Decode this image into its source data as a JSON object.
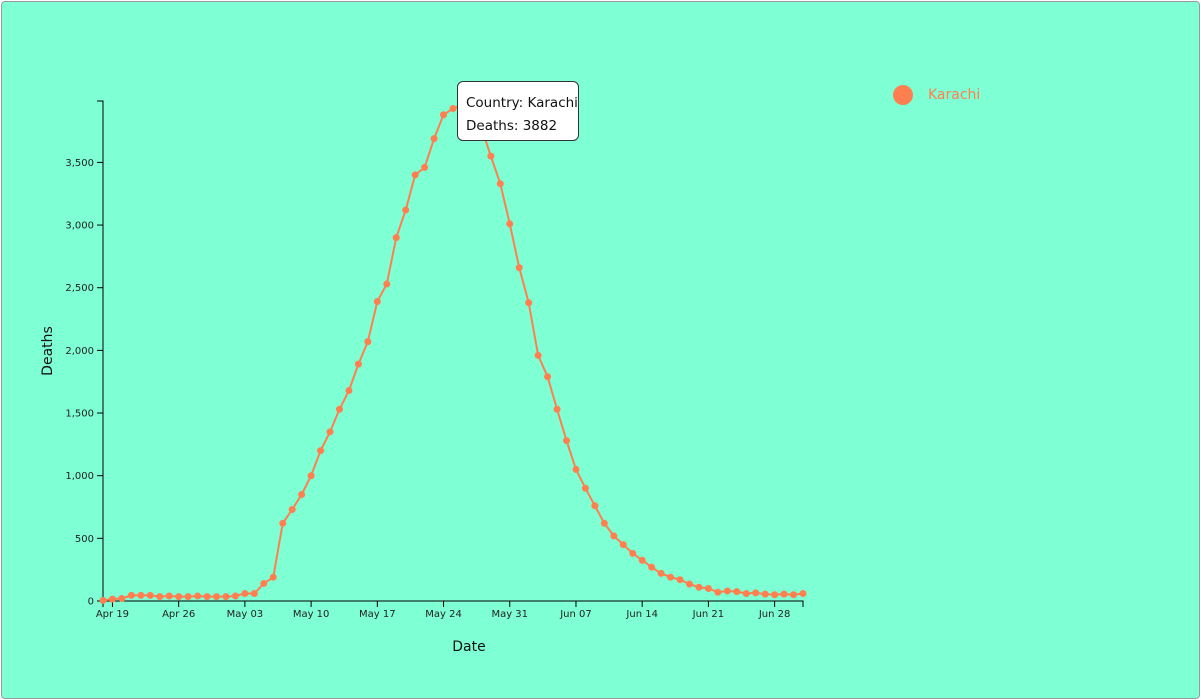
{
  "chart_data": {
    "type": "line",
    "xlabel": "Date",
    "ylabel": "Deaths",
    "start_date": "2020-04-18",
    "y_ticks": [
      0,
      500,
      1000,
      1500,
      2000,
      2500,
      3000,
      3500
    ],
    "y_tick_labels": [
      "0",
      "500",
      "1,000",
      "1,500",
      "2,000",
      "2,500",
      "3,000",
      "3,500"
    ],
    "x_tick_labels": [
      "Apr 19",
      "Apr 26",
      "May 03",
      "May 10",
      "May 17",
      "May 24",
      "May 31",
      "Jun 07",
      "Jun 14",
      "Jun 21",
      "Jun 28"
    ],
    "x_tick_dates": [
      "2020-04-19",
      "2020-04-26",
      "2020-05-03",
      "2020-05-10",
      "2020-05-17",
      "2020-05-24",
      "2020-05-31",
      "2020-06-07",
      "2020-06-14",
      "2020-06-21",
      "2020-06-28"
    ],
    "ylim": [
      0,
      3990
    ],
    "grid": false,
    "legend_position": "top-right",
    "series": [
      {
        "name": "Karachi",
        "color": "#ff7f50",
        "values": [
          5,
          15,
          20,
          45,
          45,
          45,
          35,
          40,
          35,
          35,
          40,
          35,
          35,
          35,
          40,
          60,
          60,
          140,
          190,
          620,
          730,
          850,
          1000,
          1200,
          1350,
          1530,
          1680,
          1890,
          2070,
          2390,
          2530,
          2900,
          3120,
          3400,
          3460,
          3690,
          3880,
          3930,
          3960,
          3882,
          3780,
          3550,
          3330,
          3010,
          2660,
          2380,
          1960,
          1790,
          1530,
          1280,
          1050,
          900,
          760,
          620,
          520,
          450,
          380,
          325,
          270,
          220,
          190,
          170,
          135,
          110,
          100,
          70,
          80,
          75,
          60,
          65,
          55,
          50,
          55,
          50,
          60
        ]
      }
    ]
  },
  "tooltip": {
    "country_line": "Country: Karachi",
    "deaths_line": "Deaths: 3882"
  },
  "legend": {
    "label": "Karachi",
    "color": "#ff7f50"
  },
  "colors": {
    "background": "#7fffd4",
    "line": "#ff7f50"
  }
}
